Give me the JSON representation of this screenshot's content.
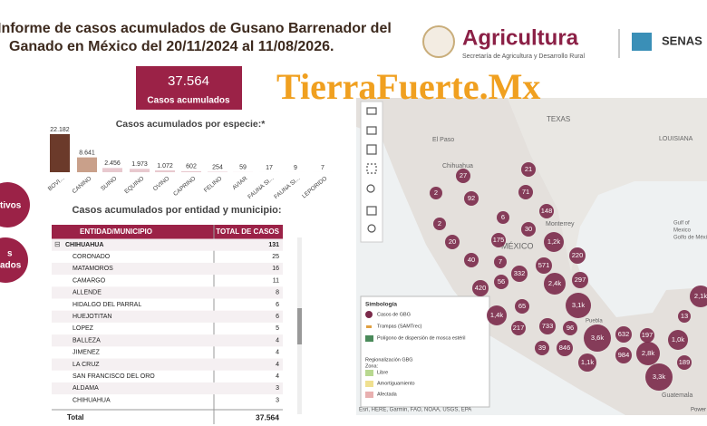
{
  "header": {
    "title_line1": "Informe de casos acumulados de Gusano Barrenador del",
    "title_line2": "Ganado en México del 20/11/2024 al 11/08/2026.",
    "brand": "Agricultura",
    "brand_sub": "Secretaría de Agricultura y Desarrollo Rural",
    "brand2": "SENAS",
    "watermark": "TierraFuerte.Mx"
  },
  "side": {
    "button1": "tivos",
    "button2_line1": "s",
    "button2_line2": "ados"
  },
  "kpi": {
    "value": "37.564",
    "label": "Casos acumulados"
  },
  "chart_data": {
    "type": "bar",
    "title": "Casos acumulados por especie:*",
    "categories": [
      "BOVI...",
      "CANINO",
      "SUINO",
      "EQUINO",
      "OVINO",
      "CAPRINO",
      "FELINO",
      "AVIAR",
      "FAUNA SI...",
      "FAUNA SI...",
      "LEPORIDO"
    ],
    "values": [
      22182,
      8641,
      2456,
      1973,
      1072,
      602,
      254,
      59,
      17,
      9,
      7
    ],
    "value_labels": [
      "22.182",
      "8.641",
      "2.456",
      "1.973",
      "1.072",
      "602",
      "254",
      "59",
      "17",
      "9",
      "7"
    ],
    "colors": [
      "#6b3a2a",
      "#c9a08a",
      "#e8c9cf",
      "#e8c9cf",
      "#e8c9cf",
      "#e8c9cf",
      "#e8c9cf",
      "#e8c9cf",
      "#e8c9cf",
      "#e8c9cf",
      "#e8c9cf"
    ]
  },
  "table": {
    "title": "Casos acumulados por entidad y municipio:",
    "columns": [
      "ENTIDAD/MUNICIPIO",
      "TOTAL DE CASOS"
    ],
    "group_icon": "⊟",
    "rows": [
      [
        "CHIHUAHUA",
        "131"
      ],
      [
        "CORONADO",
        "25"
      ],
      [
        "MATAMOROS",
        "16"
      ],
      [
        "CAMARGO",
        "11"
      ],
      [
        "ALLENDE",
        "8"
      ],
      [
        "HIDALGO DEL PARRAL",
        "6"
      ],
      [
        "HUEJOTITAN",
        "6"
      ],
      [
        "LOPEZ",
        "5"
      ],
      [
        "BALLEZA",
        "4"
      ],
      [
        "JIMENEZ",
        "4"
      ],
      [
        "LA CRUZ",
        "4"
      ],
      [
        "SAN FRANCISCO DEL ORO",
        "4"
      ],
      [
        "ALDAMA",
        "3"
      ],
      [
        "CHIHUAHUA",
        "3"
      ]
    ],
    "total": [
      "Total",
      "37.564"
    ]
  },
  "map": {
    "places": [
      "El Paso",
      "TEXAS",
      "Chihuahua",
      "Monterrey",
      "MÉXICO",
      "LOUISIANA",
      "Gulf of",
      "Mexico",
      "Golfo de México",
      "Puebla",
      "Guatemala"
    ],
    "bubbles": [
      "21",
      "27",
      "2",
      "71",
      "92",
      "6",
      "148",
      "2",
      "30",
      "1,2k",
      "175",
      "20",
      "220",
      "40",
      "7",
      "571",
      "332",
      "56",
      "420",
      "2,4k",
      "297",
      "65",
      "3,1k",
      "1,4k",
      "733",
      "96",
      "3,6k",
      "632",
      "197",
      "217",
      "39",
      "846",
      "2,8k",
      "1,0k",
      "1,1k",
      "984",
      "3,3k",
      "2,1k",
      "13",
      "189"
    ],
    "legend": {
      "title": "Simbología",
      "items": [
        "Casos de GBG",
        "Trampas (SAMTrec)",
        "Polígono de dispersión de mosca estéril",
        "Regionalización GBG",
        "Zona:",
        "Libre",
        "Amortiguamiento",
        "Afectada"
      ]
    },
    "attribution": "Esri, HERE, Garmin, FAO, NOAA, USGS, EPA",
    "powered": "Power"
  }
}
